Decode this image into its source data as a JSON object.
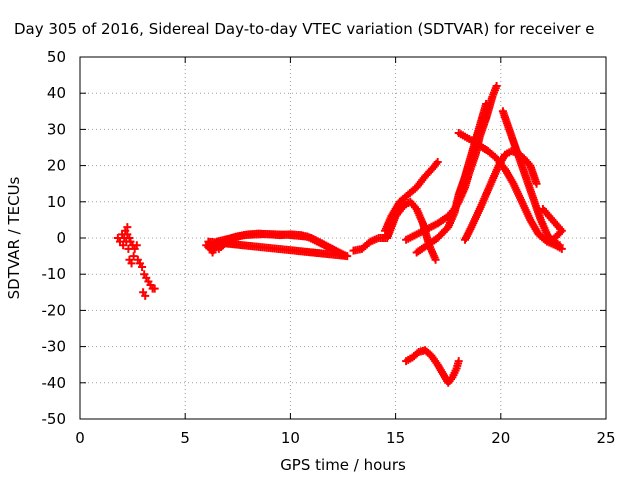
{
  "chart_data": {
    "type": "scatter",
    "title": "Day 305 of 2016, Sidereal Day-to-day VTEC variation (SDTVAR) for receiver e",
    "xlabel": "GPS time / hours",
    "ylabel": "SDTVAR / TECUs",
    "xlim": [
      0,
      25
    ],
    "ylim": [
      -50,
      50
    ],
    "xticks": [
      "0",
      "5",
      "10",
      "15",
      "20",
      "25"
    ],
    "yticks": [
      "50",
      "40",
      "30",
      "20",
      "10",
      "0",
      "-10",
      "-20",
      "-30",
      "-40",
      "-50"
    ],
    "grid": true,
    "marker": "plus",
    "color": "#ff0000",
    "series": [
      {
        "points": [
          [
            1.8,
            0
          ],
          [
            1.9,
            -1
          ],
          [
            2.0,
            1
          ],
          [
            2.05,
            -2
          ],
          [
            2.1,
            0
          ],
          [
            2.15,
            2
          ],
          [
            2.2,
            -1
          ],
          [
            2.25,
            1
          ],
          [
            2.3,
            -3
          ],
          [
            2.35,
            0
          ],
          [
            2.4,
            -1
          ],
          [
            2.5,
            -2
          ],
          [
            2.55,
            -5
          ],
          [
            2.6,
            -3
          ],
          [
            2.7,
            -2
          ],
          [
            2.75,
            -6
          ],
          [
            2.85,
            -7
          ],
          [
            2.95,
            -8
          ],
          [
            3.05,
            -10
          ],
          [
            3.15,
            -11
          ],
          [
            3.25,
            -12
          ],
          [
            3.35,
            -13
          ],
          [
            3.45,
            -14
          ],
          [
            3.55,
            -14
          ],
          [
            3.0,
            -15
          ],
          [
            3.1,
            -16
          ],
          [
            2.25,
            3
          ],
          [
            2.35,
            -6
          ],
          [
            2.45,
            -7
          ]
        ]
      },
      {
        "points": [
          [
            6.0,
            -2
          ],
          [
            6.2,
            -3
          ],
          [
            6.4,
            -2
          ],
          [
            6.6,
            -3
          ],
          [
            6.8,
            -2
          ],
          [
            7.0,
            -1
          ],
          [
            7.2,
            0
          ],
          [
            7.5,
            0.5
          ],
          [
            8.0,
            1
          ],
          [
            8.5,
            1.2
          ],
          [
            9.0,
            1
          ],
          [
            9.5,
            0.8
          ],
          [
            10.0,
            1
          ],
          [
            10.5,
            0.8
          ],
          [
            11.0,
            0
          ],
          [
            11.5,
            -1.5
          ],
          [
            12.0,
            -3
          ],
          [
            12.4,
            -4.5
          ],
          [
            12.7,
            -5
          ],
          [
            6.1,
            -1
          ],
          [
            6.3,
            -4
          ],
          [
            6.5,
            -1
          ],
          [
            7.8,
            0.8
          ],
          [
            8.8,
            1.1
          ],
          [
            9.8,
            0.9
          ],
          [
            10.8,
            0.4
          ],
          [
            11.8,
            -2.5
          ],
          [
            12.6,
            -4.8
          ]
        ]
      },
      {
        "points": [
          [
            13.0,
            -3.5
          ],
          [
            13.4,
            -3
          ],
          [
            13.8,
            -1
          ],
          [
            14.2,
            0
          ],
          [
            14.6,
            0
          ],
          [
            15.0,
            6
          ],
          [
            15.4,
            9
          ],
          [
            15.7,
            10
          ],
          [
            16.0,
            8
          ],
          [
            16.3,
            4
          ],
          [
            16.6,
            -2
          ],
          [
            16.9,
            -6
          ]
        ]
      },
      {
        "points": [
          [
            14.5,
            2
          ],
          [
            14.8,
            6
          ],
          [
            15.2,
            10
          ],
          [
            15.6,
            12
          ],
          [
            16.0,
            14
          ],
          [
            16.4,
            17
          ],
          [
            16.8,
            19.5
          ],
          [
            17.0,
            21
          ]
        ]
      },
      {
        "points": [
          [
            15.5,
            -0.5
          ],
          [
            16.0,
            1
          ],
          [
            16.5,
            2.5
          ],
          [
            17.0,
            4
          ],
          [
            17.5,
            6
          ],
          [
            17.8,
            8
          ],
          [
            18.0,
            10
          ],
          [
            18.3,
            14
          ],
          [
            18.5,
            18
          ],
          [
            18.8,
            23
          ],
          [
            19.0,
            28
          ],
          [
            19.3,
            33
          ],
          [
            19.6,
            39
          ],
          [
            19.8,
            42
          ]
        ]
      },
      {
        "points": [
          [
            16.0,
            -4
          ],
          [
            16.5,
            -2
          ],
          [
            17.0,
            0
          ],
          [
            17.5,
            3
          ],
          [
            17.8,
            7
          ],
          [
            18.0,
            12
          ],
          [
            18.3,
            17
          ],
          [
            18.6,
            23
          ],
          [
            18.9,
            29
          ],
          [
            19.1,
            33
          ],
          [
            19.3,
            37
          ]
        ]
      },
      {
        "points": [
          [
            18.0,
            29
          ],
          [
            18.3,
            28
          ],
          [
            18.6,
            27
          ],
          [
            19.0,
            25.5
          ],
          [
            19.4,
            24
          ],
          [
            19.8,
            22
          ],
          [
            20.2,
            19
          ],
          [
            20.6,
            15
          ],
          [
            21.0,
            10
          ],
          [
            21.4,
            5
          ],
          [
            21.8,
            1
          ],
          [
            22.2,
            -1
          ],
          [
            22.6,
            -2
          ],
          [
            22.9,
            -3
          ]
        ]
      },
      {
        "points": [
          [
            18.3,
            -0.5
          ],
          [
            18.6,
            3
          ],
          [
            19.0,
            8
          ],
          [
            19.3,
            12
          ],
          [
            19.6,
            16
          ],
          [
            19.9,
            20
          ],
          [
            20.2,
            23
          ],
          [
            20.5,
            24
          ],
          [
            20.8,
            23.5
          ],
          [
            21.1,
            22
          ],
          [
            21.4,
            20
          ],
          [
            21.7,
            15
          ]
        ]
      },
      {
        "points": [
          [
            20.1,
            35
          ],
          [
            20.4,
            30
          ],
          [
            20.7,
            25
          ],
          [
            21.0,
            20
          ],
          [
            21.3,
            15
          ],
          [
            21.6,
            10
          ],
          [
            21.9,
            5
          ],
          [
            22.2,
            1
          ],
          [
            22.5,
            -1
          ],
          [
            22.8,
            -2
          ]
        ]
      },
      {
        "points": [
          [
            22.0,
            8
          ],
          [
            22.3,
            6
          ],
          [
            22.6,
            4
          ],
          [
            22.9,
            2
          ],
          [
            22.4,
            -1
          ],
          [
            22.7,
            -2
          ]
        ]
      },
      {
        "points": [
          [
            15.5,
            -34
          ],
          [
            15.8,
            -33
          ],
          [
            16.1,
            -31.5
          ],
          [
            16.4,
            -31
          ],
          [
            16.7,
            -32.5
          ],
          [
            17.0,
            -35
          ],
          [
            17.3,
            -38
          ],
          [
            17.5,
            -40
          ],
          [
            17.7,
            -38.5
          ],
          [
            17.9,
            -36
          ],
          [
            18.0,
            -34
          ]
        ]
      }
    ]
  }
}
